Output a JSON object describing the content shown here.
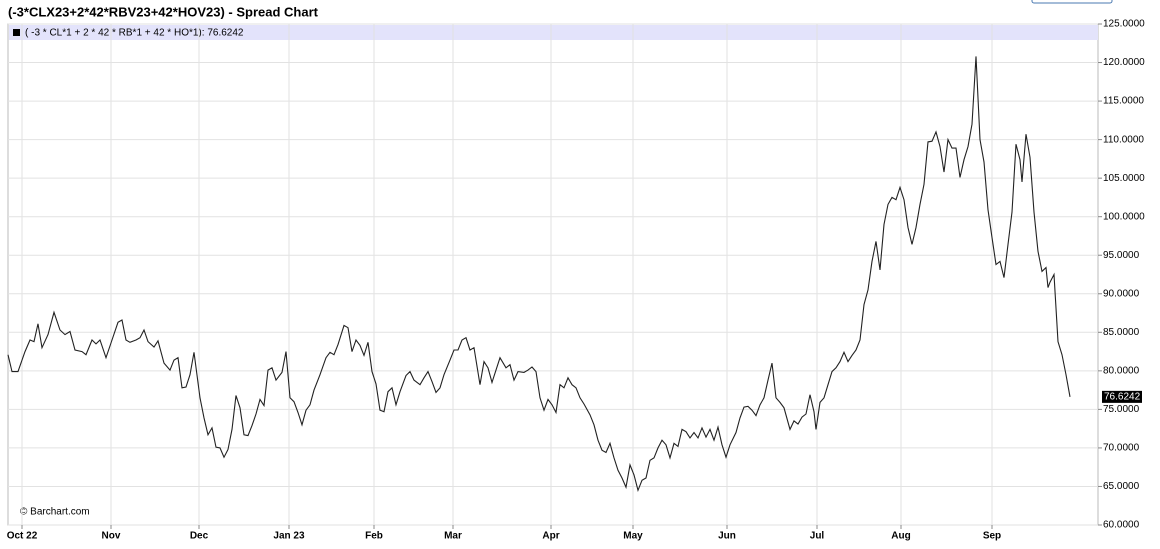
{
  "chart_data": {
    "type": "line",
    "title": "(-3*CLX23+2*42*RBV23+42*HOV23) - Spread Chart",
    "source": "© Barchart.com",
    "grid": true,
    "xlim": [
      0,
      1090
    ],
    "xticks": [
      {
        "value": 14,
        "label": "Oct 22"
      },
      {
        "value": 103,
        "label": "Nov"
      },
      {
        "value": 191,
        "label": "Dec"
      },
      {
        "value": 281,
        "label": "Jan 23"
      },
      {
        "value": 366,
        "label": "Feb"
      },
      {
        "value": 445,
        "label": "Mar"
      },
      {
        "value": 543,
        "label": "Apr"
      },
      {
        "value": 625,
        "label": "May"
      },
      {
        "value": 719,
        "label": "Jun"
      },
      {
        "value": 809,
        "label": "Jul"
      },
      {
        "value": 893,
        "label": "Aug"
      },
      {
        "value": 984,
        "label": "Sep"
      }
    ],
    "ylim": [
      60,
      125
    ],
    "yticks": [
      {
        "value": 60,
        "label": "60.0000"
      },
      {
        "value": 65,
        "label": "65.0000"
      },
      {
        "value": 70,
        "label": "70.0000"
      },
      {
        "value": 75,
        "label": "75.0000"
      },
      {
        "value": 80,
        "label": "80.0000"
      },
      {
        "value": 85,
        "label": "85.0000"
      },
      {
        "value": 90,
        "label": "90.0000"
      },
      {
        "value": 95,
        "label": "95.0000"
      },
      {
        "value": 100,
        "label": "100.0000"
      },
      {
        "value": 105,
        "label": "105.0000"
      },
      {
        "value": 110,
        "label": "110.0000"
      },
      {
        "value": 115,
        "label": "115.0000"
      },
      {
        "value": 120,
        "label": "120.0000"
      },
      {
        "value": 125,
        "label": "125.0000"
      }
    ],
    "x": [
      0,
      4,
      10,
      17,
      22,
      26,
      30,
      34,
      40,
      46,
      52,
      57,
      62,
      67,
      74,
      78,
      84,
      88,
      92,
      98,
      104,
      110,
      114,
      118,
      122,
      128,
      132,
      136,
      140,
      146,
      150,
      156,
      162,
      166,
      170,
      174,
      178,
      182,
      186,
      192,
      196,
      200,
      204,
      208,
      212,
      216,
      220,
      224,
      228,
      232,
      236,
      240,
      244,
      248,
      252,
      256,
      260,
      264,
      268,
      274,
      278,
      282,
      286,
      290,
      294,
      298,
      302,
      306,
      312,
      318,
      322,
      326,
      330,
      336,
      340,
      344,
      348,
      352,
      356,
      360,
      364,
      368,
      372,
      376,
      380,
      384,
      388,
      392,
      398,
      402,
      406,
      412,
      416,
      420,
      424,
      428,
      432,
      436,
      442,
      446,
      450,
      454,
      458,
      462,
      466,
      472,
      476,
      480,
      484,
      488,
      492,
      498,
      502,
      506,
      510,
      516,
      520,
      524,
      528,
      532,
      536,
      540,
      544,
      548,
      552,
      556,
      560,
      564,
      568,
      572,
      576,
      582,
      586,
      590,
      594,
      598,
      602,
      606,
      610,
      614,
      618,
      622,
      626,
      630,
      634,
      638,
      642,
      646,
      650,
      654,
      658,
      662,
      666,
      670,
      674,
      678,
      682,
      686,
      690,
      694,
      698,
      702,
      706,
      710,
      714,
      718,
      722,
      728,
      732,
      736,
      740,
      744,
      748,
      752,
      756,
      760,
      764,
      768,
      772,
      776,
      782,
      786,
      790,
      794,
      798,
      802,
      806,
      808,
      812,
      816,
      820,
      824,
      828,
      832,
      836,
      840,
      844,
      848,
      852,
      856,
      860,
      864,
      868,
      872,
      876,
      880,
      884,
      888,
      892,
      896,
      900,
      904,
      908,
      912,
      916,
      920,
      924,
      928,
      932,
      936,
      940,
      944,
      948,
      952,
      956,
      960,
      964,
      968,
      972,
      976,
      980,
      984,
      988,
      992,
      996,
      1000,
      1004,
      1008,
      1012,
      1014,
      1018,
      1022,
      1026,
      1030,
      1034,
      1038,
      1040,
      1042,
      1046,
      1050,
      1054,
      1058,
      1062
    ],
    "series": [
      {
        "name": "( -3 * CL*1 + 2 * 42 * RB*1 + 42 * HO*1): 76.6242",
        "color": "#222222",
        "values": [
          82.1,
          79.9,
          79.9,
          82.5,
          84.0,
          83.8,
          86.1,
          83.0,
          84.7,
          87.6,
          85.3,
          84.7,
          85.1,
          82.7,
          82.5,
          82.1,
          84.0,
          83.5,
          84.0,
          81.7,
          84.0,
          86.3,
          86.6,
          84.0,
          83.7,
          84.0,
          84.3,
          85.3,
          83.8,
          83.1,
          83.9,
          81.0,
          80.1,
          81.4,
          81.7,
          77.8,
          77.9,
          79.5,
          82.4,
          76.5,
          73.9,
          71.7,
          72.6,
          70.1,
          70.0,
          68.8,
          69.8,
          72.4,
          76.8,
          75.2,
          71.7,
          71.6,
          72.9,
          74.4,
          76.3,
          75.5,
          80.1,
          80.4,
          78.8,
          79.8,
          82.5,
          76.5,
          76.0,
          74.6,
          73.0,
          74.9,
          75.6,
          77.5,
          79.5,
          81.7,
          82.4,
          82.1,
          83.4,
          85.9,
          85.6,
          82.5,
          84.0,
          83.3,
          82.0,
          83.7,
          79.9,
          78.3,
          74.9,
          74.7,
          77.3,
          77.8,
          75.6,
          77.3,
          79.4,
          79.9,
          78.8,
          78.2,
          79.1,
          79.9,
          78.6,
          77.2,
          77.8,
          79.5,
          81.4,
          82.7,
          82.7,
          84.0,
          84.3,
          82.7,
          83.0,
          78.2,
          81.2,
          80.4,
          78.5,
          80.1,
          81.7,
          80.4,
          80.8,
          78.8,
          79.9,
          79.8,
          80.1,
          80.5,
          79.9,
          76.5,
          74.9,
          76.3,
          75.6,
          74.6,
          78.2,
          77.8,
          79.1,
          78.2,
          77.8,
          76.5,
          75.7,
          74.3,
          73.0,
          71.0,
          69.7,
          69.4,
          70.6,
          68.7,
          67.1,
          66.1,
          64.9,
          67.8,
          66.5,
          64.5,
          65.8,
          66.1,
          68.4,
          68.7,
          70.0,
          71.0,
          70.4,
          68.7,
          70.6,
          70.2,
          72.4,
          72.1,
          71.3,
          72.0,
          71.3,
          72.6,
          71.4,
          72.4,
          71.0,
          72.7,
          70.4,
          68.8,
          70.4,
          72.0,
          73.9,
          75.3,
          75.4,
          74.9,
          74.2,
          75.6,
          76.5,
          78.8,
          81.0,
          76.5,
          75.9,
          75.2,
          72.4,
          73.5,
          73.1,
          74.0,
          74.4,
          76.9,
          74.7,
          72.4,
          75.9,
          76.5,
          78.2,
          79.9,
          80.4,
          81.2,
          82.4,
          81.2,
          82.0,
          82.7,
          84.0,
          88.6,
          90.5,
          94.2,
          96.8,
          93.1,
          99.0,
          101.6,
          102.5,
          102.2,
          103.8,
          102.2,
          98.6,
          96.4,
          98.6,
          101.6,
          104.2,
          109.7,
          109.8,
          111.0,
          109.1,
          105.8,
          110.0,
          108.9,
          108.9,
          105.1,
          107.4,
          109.1,
          112.0,
          120.8,
          110.0,
          107.1,
          100.9,
          97.3,
          93.8,
          94.2,
          92.1,
          96.4,
          100.6,
          109.4,
          107.4,
          104.5,
          110.7,
          107.7,
          100.6,
          95.5,
          92.9,
          93.4,
          90.8,
          91.5,
          92.5,
          83.8,
          82.1,
          79.5,
          76.6242
        ]
      }
    ]
  }
}
